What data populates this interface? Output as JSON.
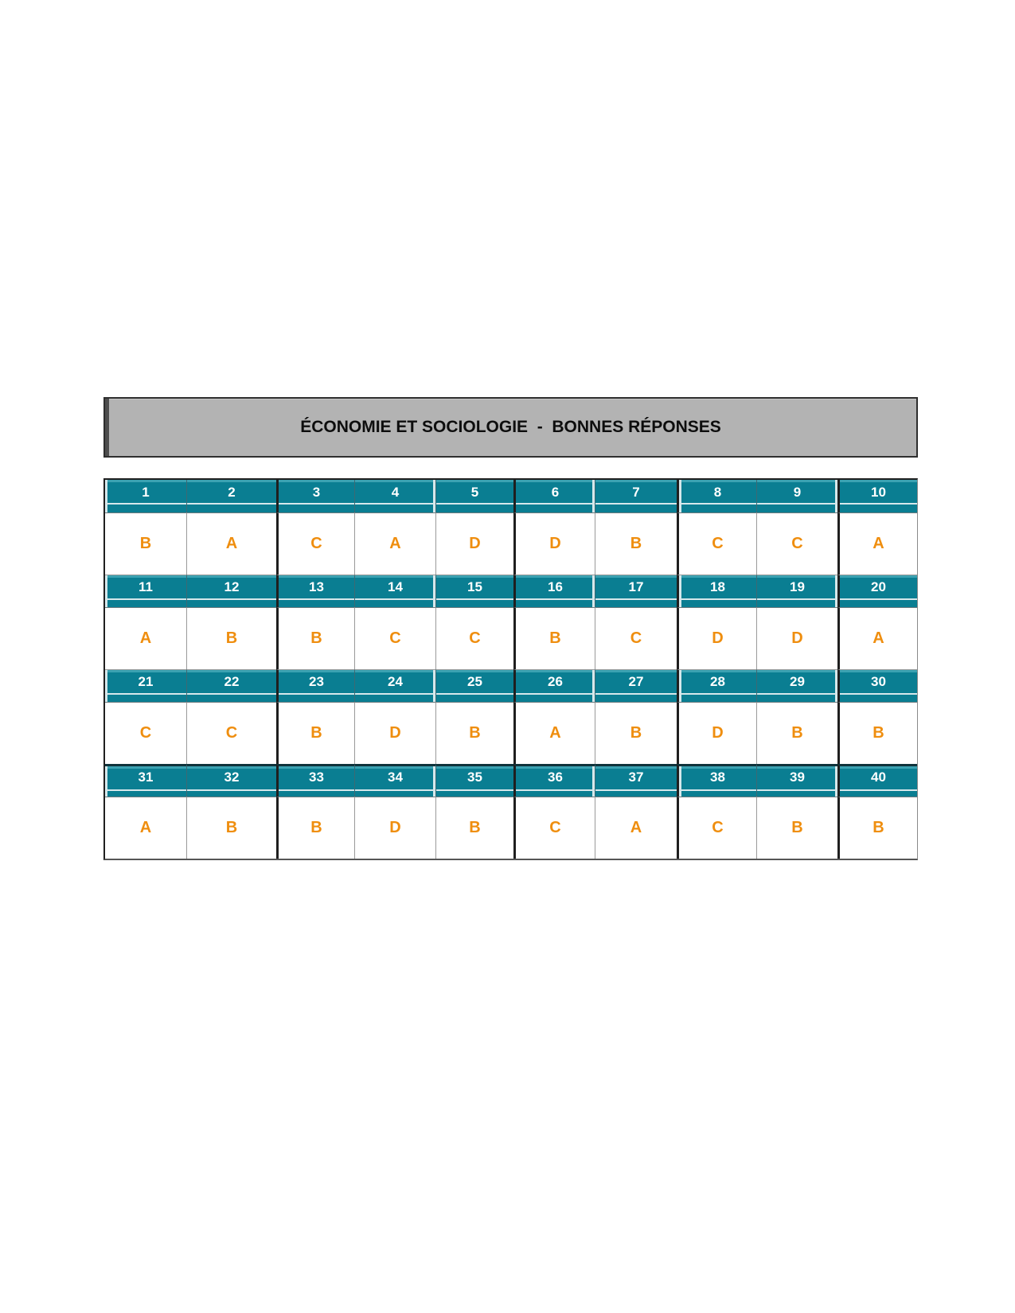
{
  "title_bar": {
    "text": "ÉCONOMIE ET SOCIOLOGIE  -  BONNES RÉPONSES"
  },
  "colors": {
    "header_teal": "#0A7E92",
    "header_teal_highlight": "#3BA2B2",
    "header_bevel_line": "#D6E8EB",
    "answer_orange": "#EF8E0F",
    "title_bar_gray": "#B3B3B3",
    "number_text_white": "#FFFFFF",
    "border_dark": "#1F1F1F",
    "border_light": "#9A9A9A"
  },
  "answer_key": {
    "groups": [
      {
        "numbers": [
          "1",
          "2",
          "3",
          "4",
          "5",
          "6",
          "7",
          "8",
          "9",
          "10"
        ],
        "answers": [
          "B",
          "A",
          "C",
          "A",
          "D",
          "D",
          "B",
          "C",
          "C",
          "A"
        ]
      },
      {
        "numbers": [
          "11",
          "12",
          "13",
          "14",
          "15",
          "16",
          "17",
          "18",
          "19",
          "20"
        ],
        "answers": [
          "A",
          "B",
          "B",
          "C",
          "C",
          "B",
          "C",
          "D",
          "D",
          "A"
        ]
      },
      {
        "numbers": [
          "21",
          "22",
          "23",
          "24",
          "25",
          "26",
          "27",
          "28",
          "29",
          "30"
        ],
        "answers": [
          "C",
          "C",
          "B",
          "D",
          "B",
          "A",
          "B",
          "D",
          "B",
          "B"
        ]
      },
      {
        "numbers": [
          "31",
          "32",
          "33",
          "34",
          "35",
          "36",
          "37",
          "38",
          "39",
          "40"
        ],
        "answers": [
          "A",
          "B",
          "B",
          "D",
          "B",
          "C",
          "A",
          "C",
          "B",
          "B"
        ]
      }
    ]
  }
}
